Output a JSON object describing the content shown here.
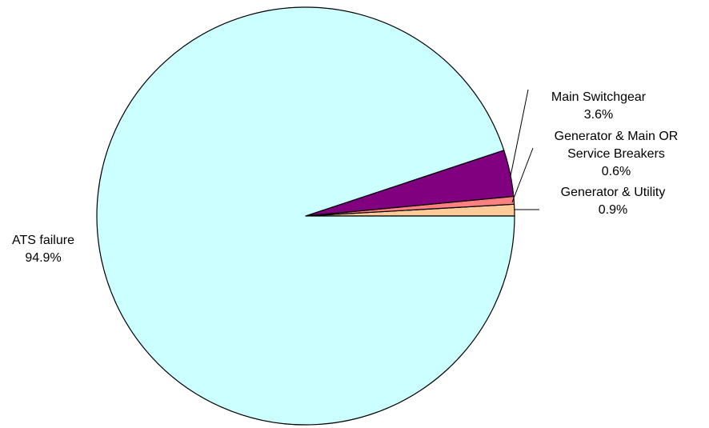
{
  "chart_data": {
    "type": "pie",
    "title": "",
    "start_angle_deg": 0,
    "direction": "counterclockwise",
    "slices": [
      {
        "label": [
          "Generator & Utility"
        ],
        "value_label": "0.9%",
        "value": 0.9,
        "color": "#FFCC99"
      },
      {
        "label": [
          "Generator & Main OR",
          "Service Breakers"
        ],
        "value_label": "0.6%",
        "value": 0.6,
        "color": "#FF8080"
      },
      {
        "label": [
          "Main Switchgear"
        ],
        "value_label": "3.6%",
        "value": 3.6,
        "color": "#800080"
      },
      {
        "label": [
          "ATS failure"
        ],
        "value_label": "94.9%",
        "value": 94.9,
        "color": "#CCFFFF"
      }
    ],
    "legend": "none",
    "border_color": "#000000"
  }
}
